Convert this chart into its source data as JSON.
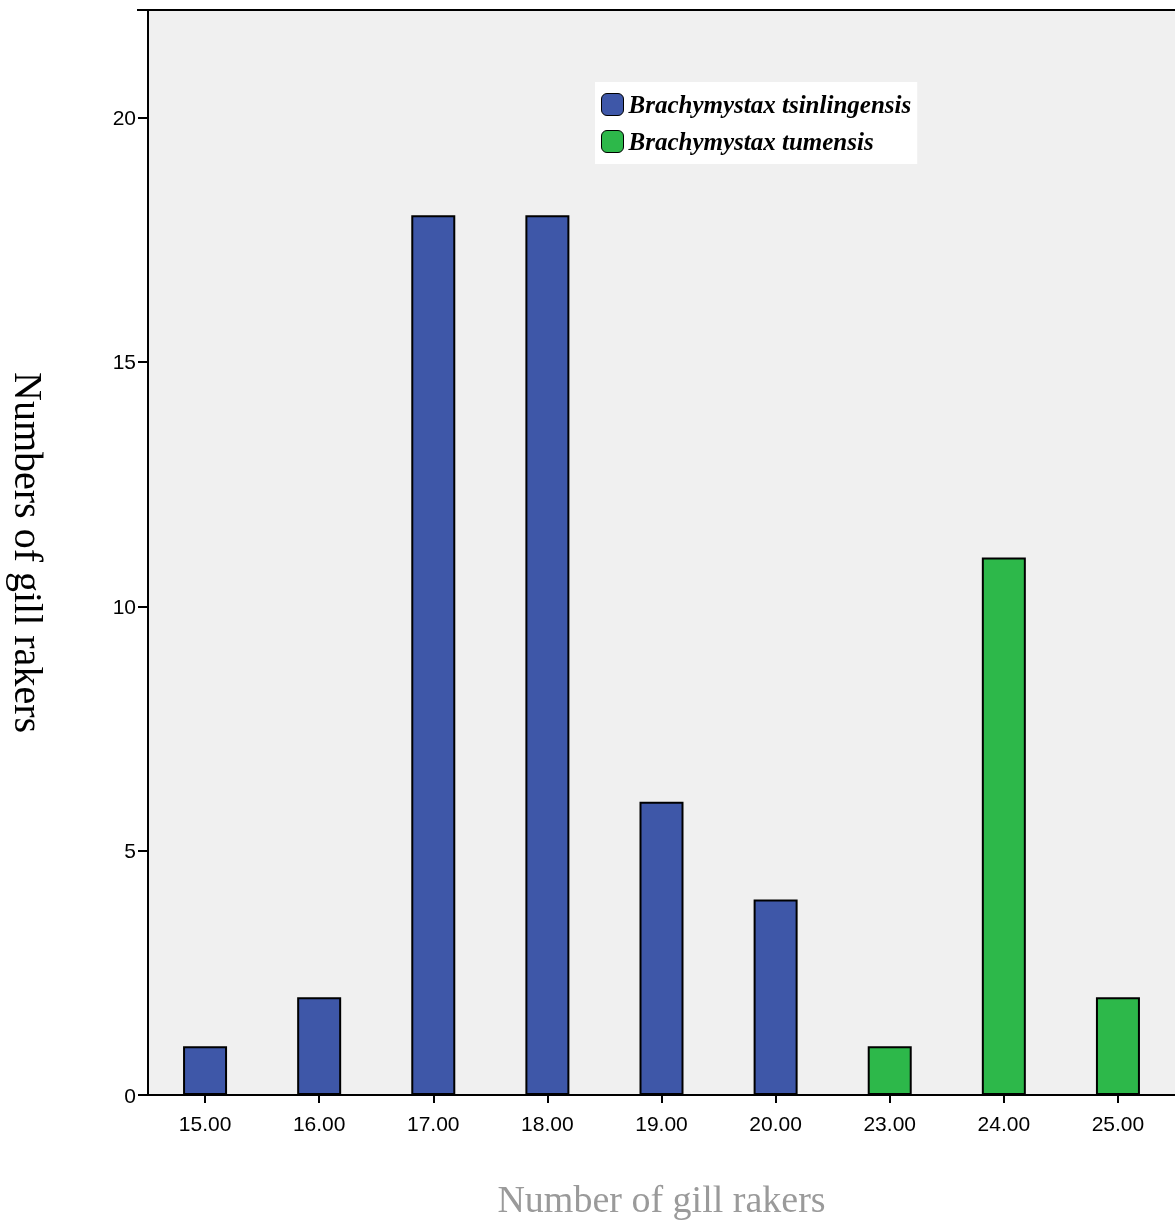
{
  "chart_data": {
    "type": "bar",
    "xlabel": "Number of gill rakers",
    "ylabel": "Numbers of gill rakers",
    "categories": [
      "15.00",
      "16.00",
      "17.00",
      "18.00",
      "19.00",
      "20.00",
      "23.00",
      "24.00",
      "25.00"
    ],
    "series": [
      {
        "name": "Brachymystax tsinlingensis",
        "color": "#3e57a8",
        "values": [
          1,
          2,
          18,
          18,
          6,
          4,
          null,
          null,
          null
        ]
      },
      {
        "name": "Brachymystax tumensis",
        "color": "#2db84a",
        "values": [
          null,
          null,
          null,
          null,
          null,
          null,
          1,
          11,
          2
        ]
      }
    ],
    "ylim": [
      0,
      22.2
    ],
    "yticks": [
      0,
      5,
      10,
      15,
      20
    ],
    "grid": false,
    "legend": "top"
  }
}
